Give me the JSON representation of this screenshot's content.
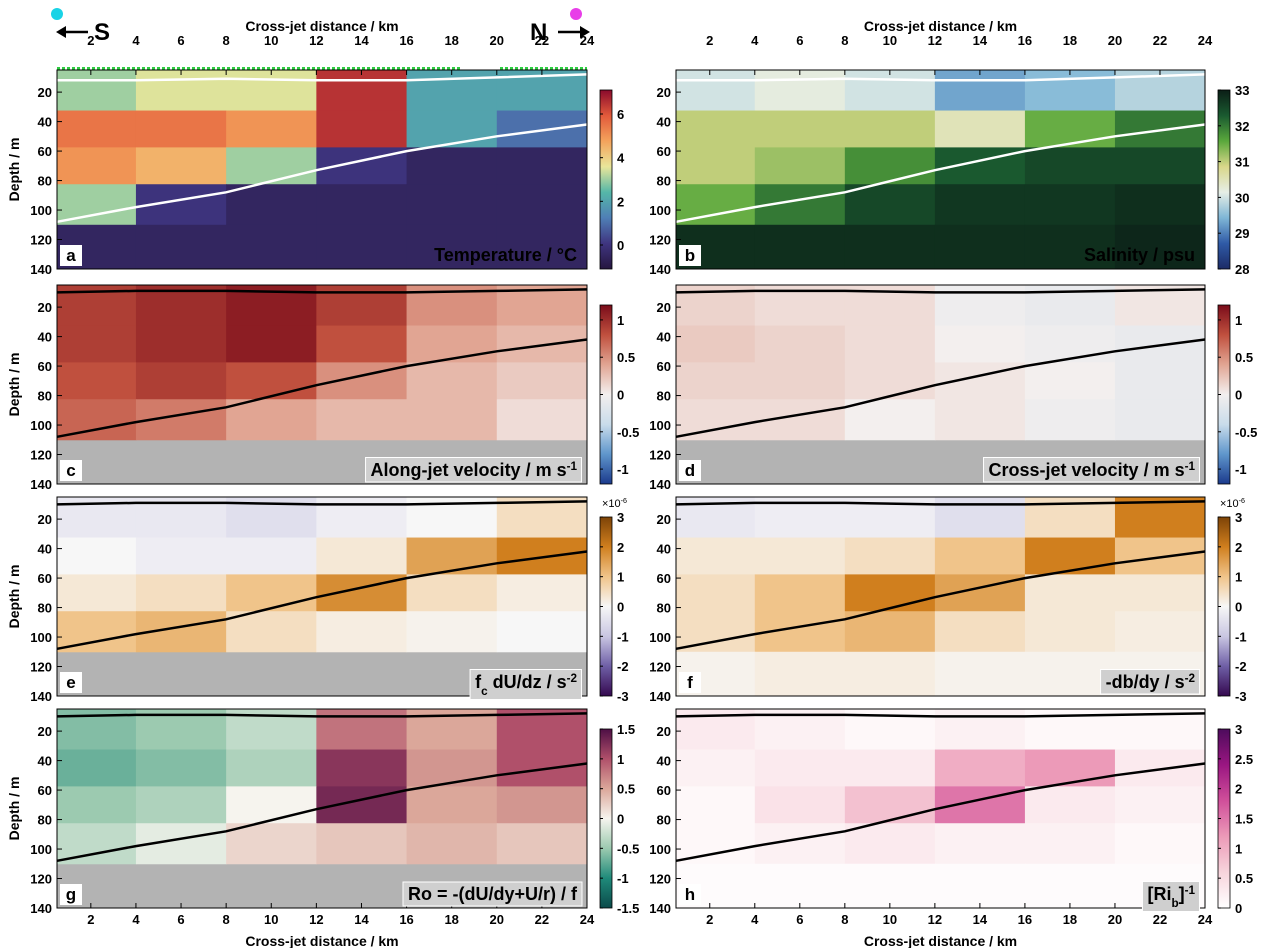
{
  "orientation": {
    "left": "S",
    "right": "N"
  },
  "chart_data": [
    {
      "type": "heatmap",
      "panel": "a",
      "xlabel": "Cross-jet distance / km",
      "xaxis_position": "top",
      "ylabel": "Depth / m",
      "label_parts": [
        {
          "text": "Temperature  / °C"
        }
      ],
      "label_color": "#ffffff",
      "xlim": [
        0.5,
        24
      ],
      "ylim": [
        140,
        5
      ],
      "xticks": [
        2,
        4,
        6,
        8,
        10,
        12,
        14,
        16,
        18,
        20,
        22,
        24
      ],
      "yticks": [
        20,
        40,
        60,
        80,
        100,
        120,
        140
      ],
      "x": [
        2,
        6,
        10,
        14,
        18,
        22
      ],
      "depth": [
        20,
        45,
        70,
        95,
        125
      ],
      "z": [
        [
          3,
          3.5,
          3.5,
          6.5,
          2,
          2
        ],
        [
          5.5,
          5.5,
          5,
          6.5,
          2,
          1
        ],
        [
          5,
          4.5,
          3,
          0,
          -0.5,
          -0.5
        ],
        [
          3,
          0,
          -0.5,
          -0.5,
          -0.5,
          -0.5
        ],
        [
          -0.5,
          -0.5,
          -0.5,
          -0.5,
          -0.5,
          -0.5
        ]
      ],
      "clim": [
        -1.1,
        7.1
      ],
      "cticks": [
        0,
        2,
        4,
        6
      ],
      "colormap": [
        "#26163f",
        "#3f3580",
        "#4f7fb6",
        "#55b7a8",
        "#e9e69a",
        "#f4a35c",
        "#e25a3b",
        "#8a0a2c"
      ],
      "contour_color": "#ffffff",
      "contours": [
        {
          "x": [
            0.5,
            4,
            8,
            12,
            16,
            20,
            24
          ],
          "depth": [
            108,
            98,
            88,
            73,
            60,
            50,
            42
          ]
        },
        {
          "x": [
            0.5,
            4,
            8,
            12,
            16,
            20,
            24
          ],
          "depth": [
            12,
            12,
            11,
            12,
            12,
            10,
            8
          ]
        }
      ]
    },
    {
      "type": "heatmap",
      "panel": "b",
      "xlabel": "Cross-jet distance / km",
      "xaxis_position": "top",
      "label_parts": [
        {
          "text": "Salinity / psu"
        }
      ],
      "label_color": "#ffffff",
      "xlim": [
        0.5,
        24
      ],
      "ylim": [
        140,
        5
      ],
      "xticks": [
        2,
        4,
        6,
        8,
        10,
        12,
        14,
        16,
        18,
        20,
        22,
        24
      ],
      "yticks": [
        20,
        40,
        60,
        80,
        100,
        120,
        140
      ],
      "x": [
        2,
        6,
        10,
        14,
        18,
        22
      ],
      "depth": [
        20,
        45,
        70,
        95,
        125
      ],
      "z": [
        [
          30,
          30.2,
          30,
          29.3,
          29.5,
          29.8
        ],
        [
          31,
          31,
          31,
          30.5,
          31.5,
          32
        ],
        [
          31,
          31.2,
          31.8,
          32.3,
          32.5,
          32.5
        ],
        [
          31.5,
          32,
          32.5,
          32.7,
          32.7,
          32.8
        ],
        [
          32.8,
          32.8,
          32.8,
          32.8,
          32.8,
          32.9
        ]
      ],
      "clim": [
        28,
        33
      ],
      "cticks": [
        28,
        29,
        30,
        31,
        32,
        33
      ],
      "colormap": [
        "#1c2b66",
        "#2f5aa6",
        "#7fb6d6",
        "#e6eee6",
        "#d9d78a",
        "#5aa83c",
        "#1a5a30",
        "#0b1e16"
      ],
      "contour_color": "#ffffff",
      "contours": [
        {
          "x": [
            0.5,
            4,
            8,
            12,
            16,
            20,
            24
          ],
          "depth": [
            108,
            98,
            88,
            73,
            60,
            50,
            42
          ]
        },
        {
          "x": [
            0.5,
            4,
            8,
            12,
            16,
            20,
            24
          ],
          "depth": [
            12,
            12,
            11,
            12,
            12,
            10,
            8
          ]
        }
      ]
    },
    {
      "type": "heatmap",
      "panel": "c",
      "ylabel": "Depth / m",
      "label_parts": [
        {
          "text": "Along-jet velocity  / m  s"
        },
        {
          "text": "-1",
          "script": "sup"
        }
      ],
      "label_color": "#000000",
      "label_box": "#cfcfcf",
      "xlim": [
        0.5,
        24
      ],
      "ylim": [
        140,
        5
      ],
      "yticks": [
        20,
        40,
        60,
        80,
        100,
        120,
        140
      ],
      "mask_color": "#b3b3b3",
      "x": [
        2,
        6,
        10,
        14,
        18,
        22
      ],
      "depth": [
        20,
        45,
        70,
        95,
        125
      ],
      "z": [
        [
          0.9,
          1.0,
          1.1,
          0.9,
          0.5,
          0.4
        ],
        [
          0.9,
          1.0,
          1.1,
          0.8,
          0.4,
          0.3
        ],
        [
          0.8,
          0.9,
          0.8,
          0.5,
          0.3,
          0.2
        ],
        [
          0.7,
          0.6,
          0.4,
          0.3,
          0.3,
          0.1
        ],
        [
          null,
          null,
          null,
          null,
          null,
          null
        ]
      ],
      "clim": [
        -1.2,
        1.2
      ],
      "cticks": [
        -1,
        -0.5,
        0,
        0.5,
        1
      ],
      "colormap": [
        "#1b3a8c",
        "#5f96cc",
        "#c9dcea",
        "#f3efee",
        "#e1a593",
        "#c0503e",
        "#7a0c1a"
      ],
      "contour_color": "#000000",
      "contours": [
        {
          "x": [
            0.5,
            4,
            8,
            12,
            16,
            20,
            24
          ],
          "depth": [
            108,
            98,
            88,
            73,
            60,
            50,
            42
          ]
        },
        {
          "x": [
            0.5,
            4,
            8,
            12,
            16,
            20,
            24
          ],
          "depth": [
            10,
            9,
            9,
            10,
            10,
            9,
            8
          ]
        }
      ]
    },
    {
      "type": "heatmap",
      "panel": "d",
      "label_parts": [
        {
          "text": "Cross-jet velocity  / m  s"
        },
        {
          "text": "-1",
          "script": "sup"
        }
      ],
      "label_color": "#000000",
      "label_box": "#cfcfcf",
      "xlim": [
        0.5,
        24
      ],
      "ylim": [
        140,
        5
      ],
      "yticks": [
        20,
        40,
        60,
        80,
        100,
        120,
        140
      ],
      "mask_color": "#b3b3b3",
      "x": [
        2,
        6,
        10,
        14,
        18,
        22
      ],
      "depth": [
        20,
        45,
        70,
        95,
        125
      ],
      "z": [
        [
          0.15,
          0.1,
          0.1,
          -0.05,
          -0.1,
          0.05
        ],
        [
          0.2,
          0.15,
          0.1,
          0,
          -0.05,
          -0.1
        ],
        [
          0.15,
          0.15,
          0.1,
          0.05,
          0,
          -0.1
        ],
        [
          0.1,
          0.1,
          0,
          0.05,
          -0.05,
          -0.1
        ],
        [
          null,
          null,
          null,
          null,
          null,
          null
        ]
      ],
      "clim": [
        -1.2,
        1.2
      ],
      "cticks": [
        -1,
        -0.5,
        0,
        0.5,
        1
      ],
      "colormap": [
        "#1b3a8c",
        "#5f96cc",
        "#c9dcea",
        "#f3efee",
        "#e1a593",
        "#c0503e",
        "#7a0c1a"
      ],
      "contour_color": "#000000",
      "contours": [
        {
          "x": [
            0.5,
            4,
            8,
            12,
            16,
            20,
            24
          ],
          "depth": [
            108,
            98,
            88,
            73,
            60,
            50,
            42
          ]
        },
        {
          "x": [
            0.5,
            4,
            8,
            12,
            16,
            20,
            24
          ],
          "depth": [
            10,
            9,
            9,
            10,
            10,
            9,
            8
          ]
        }
      ]
    },
    {
      "type": "heatmap",
      "panel": "e",
      "ylabel": "Depth / m",
      "label_parts": [
        {
          "text": "f"
        },
        {
          "text": "c",
          "script": "sub"
        },
        {
          "text": " dU/dz  / s"
        },
        {
          "text": "-2",
          "script": "sup"
        }
      ],
      "label_color": "#000000",
      "label_box": "#cfcfcf",
      "xlim": [
        0.5,
        24
      ],
      "ylim": [
        140,
        5
      ],
      "yticks": [
        20,
        40,
        60,
        80,
        100,
        120,
        140
      ],
      "mask_color": "#b3b3b3",
      "x": [
        2,
        6,
        10,
        14,
        18,
        22
      ],
      "depth": [
        20,
        45,
        70,
        95,
        125
      ],
      "z": [
        [
          -0.3,
          -0.3,
          -0.5,
          -0.2,
          0,
          0.5
        ],
        [
          0,
          -0.2,
          -0.2,
          0.3,
          1.5,
          2
        ],
        [
          0.3,
          0.5,
          1,
          1.8,
          0.5,
          0.2
        ],
        [
          1,
          1.2,
          0.5,
          0.2,
          0.1,
          0
        ],
        [
          null,
          null,
          null,
          null,
          null,
          null
        ]
      ],
      "clim": [
        -3,
        3
      ],
      "cticks": [
        -3,
        -2,
        -1,
        0,
        1,
        2,
        3
      ],
      "cbar_exponent": [
        {
          "text": "×10"
        },
        {
          "text": "-6",
          "script": "sup"
        }
      ],
      "colormap": [
        "#34084f",
        "#6f5fa6",
        "#c9c6e2",
        "#f7f7f7",
        "#f0c48a",
        "#d07f1e",
        "#7d4307"
      ],
      "contour_color": "#000000",
      "contours": [
        {
          "x": [
            0.5,
            4,
            8,
            12,
            16,
            20,
            24
          ],
          "depth": [
            108,
            98,
            88,
            73,
            60,
            50,
            42
          ]
        },
        {
          "x": [
            0.5,
            4,
            8,
            12,
            16,
            20,
            24
          ],
          "depth": [
            10,
            9,
            9,
            10,
            10,
            9,
            8
          ]
        }
      ]
    },
    {
      "type": "heatmap",
      "panel": "f",
      "label_parts": [
        {
          "text": "-db/dy  / s"
        },
        {
          "text": "-2",
          "script": "sup"
        }
      ],
      "label_color": "#000000",
      "label_box": "#cfcfcf",
      "xlim": [
        0.5,
        24
      ],
      "ylim": [
        140,
        5
      ],
      "yticks": [
        20,
        40,
        60,
        80,
        100,
        120,
        140
      ],
      "x": [
        2,
        6,
        10,
        14,
        18,
        22
      ],
      "depth": [
        20,
        45,
        70,
        95,
        125
      ],
      "z": [
        [
          -0.3,
          -0.2,
          -0.2,
          -0.5,
          0.5,
          2
        ],
        [
          0.3,
          0.3,
          0.5,
          1,
          2,
          1
        ],
        [
          0.5,
          1,
          2,
          1.5,
          0.3,
          0.3
        ],
        [
          0.5,
          1,
          1.2,
          0.5,
          0.3,
          0.2
        ],
        [
          0.1,
          0.2,
          0.2,
          0.1,
          0.1,
          0.1
        ]
      ],
      "clim": [
        -3,
        3
      ],
      "cticks": [
        -3,
        -2,
        -1,
        0,
        1,
        2,
        3
      ],
      "cbar_exponent": [
        {
          "text": "×10"
        },
        {
          "text": "-6",
          "script": "sup"
        }
      ],
      "colormap": [
        "#34084f",
        "#6f5fa6",
        "#c9c6e2",
        "#f7f7f7",
        "#f0c48a",
        "#d07f1e",
        "#7d4307"
      ],
      "contour_color": "#000000",
      "contours": [
        {
          "x": [
            0.5,
            4,
            8,
            12,
            16,
            20,
            24
          ],
          "depth": [
            108,
            98,
            88,
            73,
            60,
            50,
            42
          ]
        },
        {
          "x": [
            0.5,
            4,
            8,
            12,
            16,
            20,
            24
          ],
          "depth": [
            10,
            9,
            9,
            10,
            10,
            9,
            8
          ]
        }
      ]
    },
    {
      "type": "heatmap",
      "panel": "g",
      "xlabel": "Cross-jet distance / km",
      "xaxis_position": "bottom",
      "ylabel": "Depth / m",
      "label_parts": [
        {
          "text": "Ro = -(dU/dy+U/r) / f"
        }
      ],
      "label_color": "#000000",
      "label_box": "#cfcfcf",
      "xlim": [
        0.5,
        24
      ],
      "ylim": [
        140,
        5
      ],
      "xticks": [
        2,
        4,
        6,
        8,
        10,
        12,
        14,
        16,
        18,
        20,
        22,
        24
      ],
      "yticks": [
        20,
        40,
        60,
        80,
        100,
        120,
        140
      ],
      "mask_color": "#b3b3b3",
      "x": [
        2,
        6,
        10,
        14,
        18,
        22
      ],
      "depth": [
        20,
        45,
        70,
        95,
        125
      ],
      "z": [
        [
          -0.6,
          -0.5,
          -0.3,
          0.8,
          0.5,
          1
        ],
        [
          -0.7,
          -0.6,
          -0.4,
          1.2,
          0.6,
          1
        ],
        [
          -0.5,
          -0.4,
          0,
          1.3,
          0.5,
          0.6
        ],
        [
          -0.3,
          -0.1,
          0.2,
          0.3,
          0.4,
          0.3
        ],
        [
          null,
          null,
          null,
          null,
          null,
          null
        ]
      ],
      "clim": [
        -1.5,
        1.5
      ],
      "cticks": [
        -1.5,
        -1,
        -0.5,
        0,
        0.5,
        1,
        1.5
      ],
      "colormap": [
        "#0b4a4a",
        "#1f8a7a",
        "#9ccab0",
        "#f6f4ee",
        "#dba79a",
        "#b0506a",
        "#4e0f45"
      ],
      "contour_color": "#000000",
      "contours": [
        {
          "x": [
            0.5,
            4,
            8,
            12,
            16,
            20,
            24
          ],
          "depth": [
            108,
            98,
            88,
            73,
            60,
            50,
            42
          ]
        },
        {
          "x": [
            0.5,
            4,
            8,
            12,
            16,
            20,
            24
          ],
          "depth": [
            10,
            9,
            9,
            10,
            10,
            9,
            8
          ]
        }
      ]
    },
    {
      "type": "heatmap",
      "panel": "h",
      "xlabel": "Cross-jet distance / km",
      "xaxis_position": "bottom",
      "label_parts": [
        {
          "text": "[Ri"
        },
        {
          "text": "b",
          "script": "sub"
        },
        {
          "text": "]"
        },
        {
          "text": "-1",
          "script": "sup"
        }
      ],
      "label_color": "#000000",
      "label_box": "#cfcfcf",
      "xlim": [
        0.5,
        24
      ],
      "ylim": [
        140,
        5
      ],
      "xticks": [
        2,
        4,
        6,
        8,
        10,
        12,
        14,
        16,
        18,
        20,
        22,
        24
      ],
      "yticks": [
        20,
        40,
        60,
        80,
        100,
        120,
        140
      ],
      "x": [
        2,
        6,
        10,
        14,
        18,
        22
      ],
      "depth": [
        20,
        45,
        70,
        95,
        125
      ],
      "z": [
        [
          0.3,
          0.2,
          0.1,
          0.2,
          0.1,
          0.1
        ],
        [
          0.2,
          0.3,
          0.3,
          1,
          1.2,
          0.3
        ],
        [
          0.1,
          0.4,
          0.8,
          1.5,
          0.3,
          0.2
        ],
        [
          0.1,
          0.2,
          0.3,
          0.2,
          0.2,
          0.1
        ],
        [
          0.05,
          0.05,
          0.05,
          0.05,
          0.05,
          0.05
        ]
      ],
      "clim": [
        0,
        3
      ],
      "cticks": [
        0,
        0.5,
        1,
        1.5,
        2,
        2.5,
        3
      ],
      "colormap": [
        "#ffffff",
        "#f7d4dc",
        "#ec9ab8",
        "#d04f9a",
        "#9a1681",
        "#4d0b5c"
      ],
      "contour_color": "#000000",
      "contours": [
        {
          "x": [
            0.5,
            4,
            8,
            12,
            16,
            20,
            24
          ],
          "depth": [
            108,
            98,
            88,
            73,
            60,
            50,
            42
          ]
        },
        {
          "x": [
            0.5,
            4,
            8,
            12,
            16,
            20,
            24
          ],
          "depth": [
            10,
            9,
            9,
            10,
            10,
            9,
            8
          ]
        }
      ]
    }
  ]
}
